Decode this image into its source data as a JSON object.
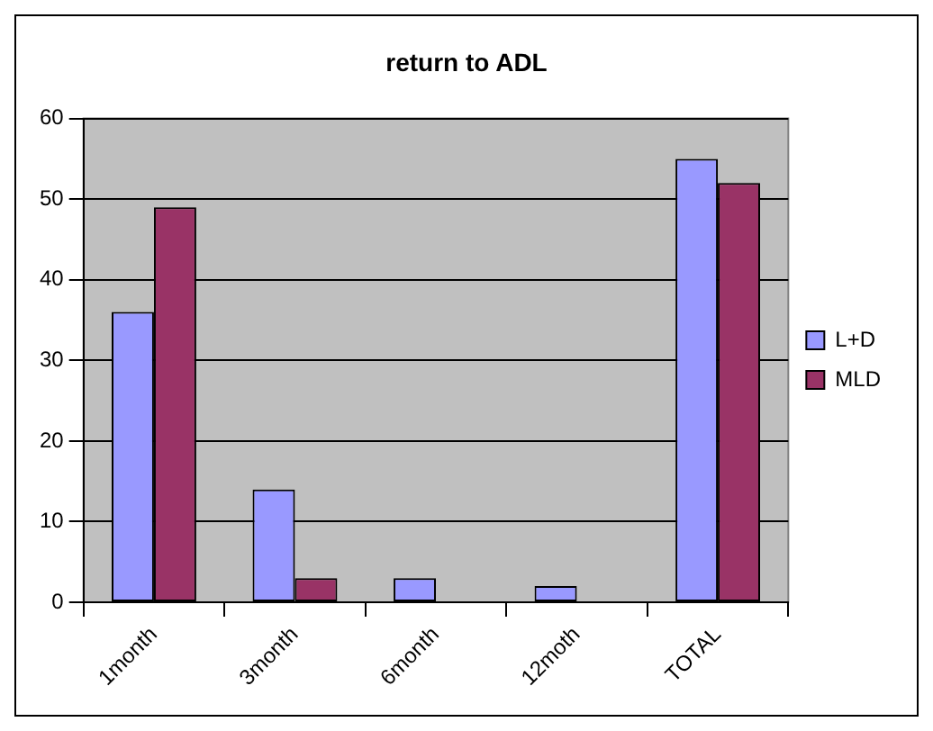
{
  "chart_data": {
    "type": "bar",
    "title": "return to ADL",
    "categories": [
      "1month",
      "3month",
      "6month",
      "12moth",
      "TOTAL"
    ],
    "series": [
      {
        "name": "L+D",
        "color": "#9999ff",
        "values": [
          36,
          14,
          3,
          2,
          55
        ]
      },
      {
        "name": "MLD",
        "color": "#993366",
        "values": [
          49,
          3,
          0,
          0,
          52
        ]
      }
    ],
    "ylim": [
      0,
      60
    ],
    "yticks": [
      0,
      10,
      20,
      30,
      40,
      50,
      60
    ],
    "grid": "y",
    "legend": "right"
  }
}
